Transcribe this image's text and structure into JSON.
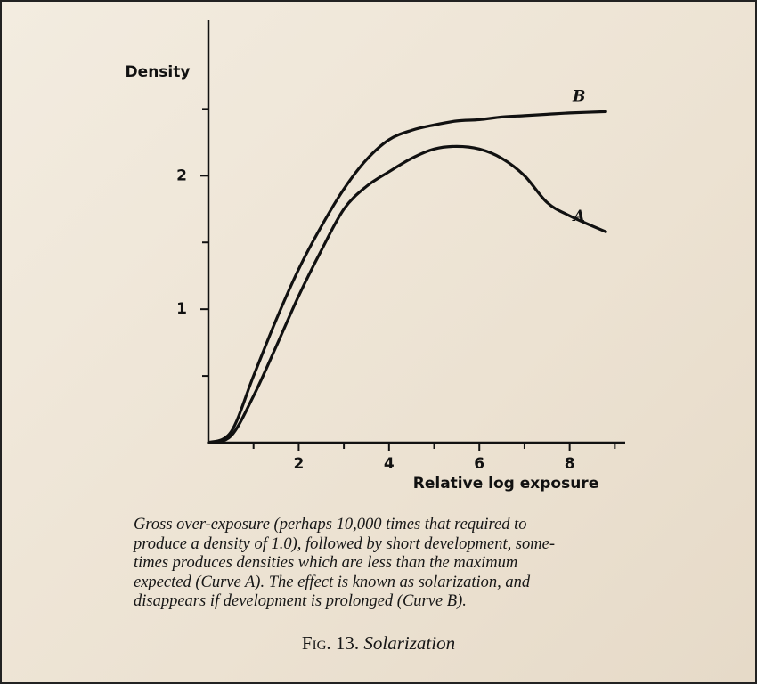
{
  "chart_data": {
    "type": "line",
    "title": "Solarization",
    "figure_number": "Fig. 13.",
    "y_label": "Density",
    "x_label": "Relative log exposure",
    "x": [
      0,
      0.5,
      1,
      1.5,
      2,
      2.5,
      3,
      3.5,
      4,
      4.5,
      5,
      5.5,
      6,
      6.5,
      7,
      7.5,
      8,
      8.8
    ],
    "series": [
      {
        "name": "B",
        "color": "#111111",
        "values": [
          0,
          0.08,
          0.5,
          0.92,
          1.3,
          1.62,
          1.9,
          2.12,
          2.27,
          2.34,
          2.38,
          2.41,
          2.42,
          2.44,
          2.45,
          2.46,
          2.47,
          2.48
        ]
      },
      {
        "name": "A",
        "color": "#111111",
        "values": [
          0,
          0.05,
          0.35,
          0.72,
          1.1,
          1.44,
          1.75,
          1.92,
          2.03,
          2.13,
          2.2,
          2.22,
          2.2,
          2.13,
          2.0,
          1.8,
          1.7,
          1.58
        ]
      }
    ],
    "xlim": [
      0,
      9.23
    ],
    "ylim": [
      0,
      3.17
    ],
    "xticks": [
      2,
      4,
      6,
      8
    ],
    "yticks": [
      1,
      2
    ],
    "x_minor_ticks": [
      1,
      3,
      5,
      7,
      9
    ],
    "y_minor_ticks": [
      0.5,
      1.5,
      2.5
    ],
    "grid": false,
    "caption_lines": [
      "Gross over-exposure (perhaps 10,000 times that required to",
      "produce a density of 1.0), followed by short development, some-",
      "times produces densities which are less than the maximum",
      "expected (Curve A). The effect is known as solarization, and",
      "disappears if development is prolonged (Curve B)."
    ]
  }
}
